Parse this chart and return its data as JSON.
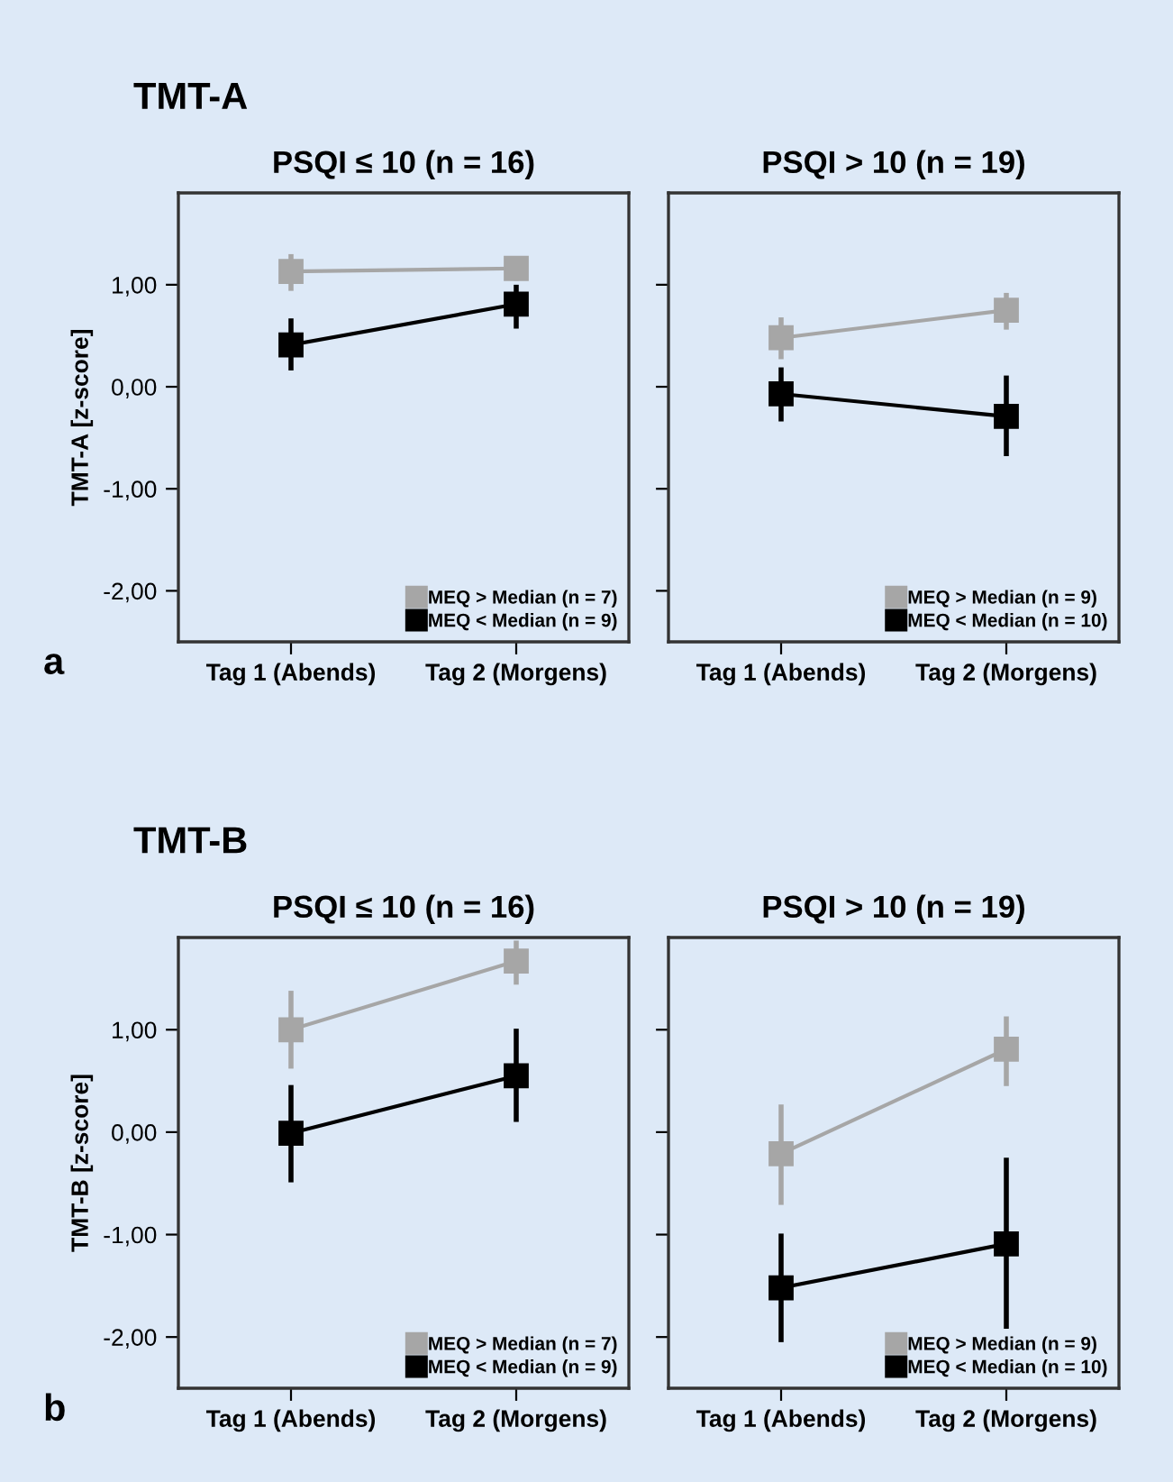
{
  "chart_data": [
    {
      "type": "line",
      "subtitle": "TMT-A",
      "title": "PSQI ≤ 10 (n = 16)",
      "ylabel": "TMT-A [z-score]",
      "annotations": [
        "a"
      ],
      "categories": [
        "Tag 1 (Abends)",
        "Tag 2 (Morgens)"
      ],
      "ylim": [
        -2.5,
        1.9
      ],
      "yticks": [
        {
          "value": 1,
          "label": "1,00"
        },
        {
          "value": 0,
          "label": "0,00"
        },
        {
          "value": -1,
          "label": "-1,00"
        },
        {
          "value": -2,
          "label": "-2,00"
        }
      ],
      "marker": "square",
      "line_style": "solid",
      "grid": false,
      "legend": "bottom right",
      "series": [
        {
          "name": "MEQ > Median (n = 7)",
          "color": "#a6a6a6",
          "values": [
            1.13,
            1.16
          ],
          "errors": [
            [
              0.94,
              1.3
            ],
            [
              1.04,
              1.28
            ]
          ]
        },
        {
          "name": "MEQ < Median (n = 9)",
          "color": "#000000",
          "values": [
            0.41,
            0.81
          ],
          "errors": [
            [
              0.16,
              0.67
            ],
            [
              0.57,
              1.0
            ]
          ]
        }
      ]
    },
    {
      "type": "line",
      "title": "PSQI > 10 (n = 19)",
      "categories": [
        "Tag 1 (Abends)",
        "Tag 2 (Morgens)"
      ],
      "ylim": [
        -2.5,
        1.9
      ],
      "yticks": [
        {
          "value": 1,
          "label": null
        },
        {
          "value": 0,
          "label": null
        },
        {
          "value": -1,
          "label": null
        },
        {
          "value": -2,
          "label": null
        }
      ],
      "tick_labels": "x",
      "marker": "square",
      "line_style": "solid",
      "grid": false,
      "legend": "bottom right",
      "series": [
        {
          "name": "MEQ > Median (n = 9)",
          "color": "#a6a6a6",
          "values": [
            0.48,
            0.75
          ],
          "errors": [
            [
              0.27,
              0.68
            ],
            [
              0.56,
              0.92
            ]
          ]
        },
        {
          "name": "MEQ < Median (n = 10)",
          "color": "#000000",
          "values": [
            -0.07,
            -0.29
          ],
          "errors": [
            [
              -0.34,
              0.19
            ],
            [
              -0.68,
              0.11
            ]
          ]
        }
      ]
    },
    {
      "type": "line",
      "subtitle": "TMT-B",
      "title": "PSQI ≤ 10 (n = 16)",
      "ylabel": "TMT-B [z-score]",
      "annotations": [
        "b"
      ],
      "categories": [
        "Tag 1 (Abends)",
        "Tag 2 (Morgens)"
      ],
      "ylim": [
        -2.5,
        1.9
      ],
      "yticks": [
        {
          "value": 1,
          "label": "1,00"
        },
        {
          "value": 0,
          "label": "0,00"
        },
        {
          "value": -1,
          "label": "-1,00"
        },
        {
          "value": -2,
          "label": "-2,00"
        }
      ],
      "marker": "square",
      "line_style": "solid",
      "grid": false,
      "legend": "bottom right",
      "series": [
        {
          "name": "MEQ > Median (n = 7)",
          "color": "#a6a6a6",
          "values": [
            1.0,
            1.67
          ],
          "errors": [
            [
              0.62,
              1.38
            ],
            [
              1.44,
              1.87
            ]
          ]
        },
        {
          "name": "MEQ < Median (n = 9)",
          "color": "#000000",
          "values": [
            -0.01,
            0.55
          ],
          "errors": [
            [
              -0.49,
              0.46
            ],
            [
              0.1,
              1.01
            ]
          ]
        }
      ]
    },
    {
      "type": "line",
      "title": "PSQI > 10 (n = 19)",
      "categories": [
        "Tag 1 (Abends)",
        "Tag 2 (Morgens)"
      ],
      "ylim": [
        -2.5,
        1.9
      ],
      "yticks": [
        {
          "value": 1,
          "label": null
        },
        {
          "value": 0,
          "label": null
        },
        {
          "value": -1,
          "label": null
        },
        {
          "value": -2,
          "label": null
        }
      ],
      "tick_labels": "x",
      "marker": "square",
      "line_style": "solid",
      "grid": false,
      "legend": "bottom right",
      "series": [
        {
          "name": "MEQ > Median (n = 9)",
          "color": "#a6a6a6",
          "values": [
            -0.21,
            0.81
          ],
          "errors": [
            [
              -0.71,
              0.27
            ],
            [
              0.45,
              1.13
            ]
          ]
        },
        {
          "name": "MEQ < Median (n = 10)",
          "color": "#000000",
          "values": [
            -1.52,
            -1.09
          ],
          "errors": [
            [
              -2.05,
              -0.99
            ],
            [
              -1.92,
              -0.25
            ]
          ]
        }
      ]
    }
  ]
}
